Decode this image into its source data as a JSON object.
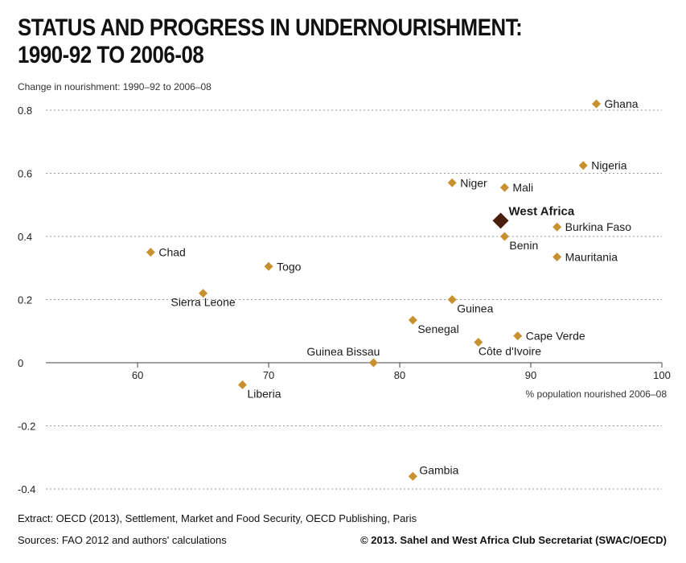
{
  "page": {
    "title_line1": "STATUS AND PROGRESS IN UNDERNOURISHMENT:",
    "title_line2": "1990-92 TO 2006-08",
    "extract": "Extract: OECD (2013), Settlement, Market and Food Security, OECD Publishing, Paris",
    "sources": "Sources: FAO 2012 and authors' calculations",
    "copyright": "© 2013. Sahel and West Africa Club Secretariat (SWAC/OECD)"
  },
  "chart_data": {
    "type": "scatter",
    "title": "STATUS AND PROGRESS IN UNDERNOURISHMENT: 1990-92 TO 2006-08",
    "xlabel": "% population nourished 2006–08",
    "ylabel": "Change in nourishment: 1990–92 to 2006–08",
    "xlim": [
      53,
      100
    ],
    "ylim": [
      -0.4,
      0.8
    ],
    "xticks": [
      60,
      70,
      80,
      90,
      100
    ],
    "yticks": [
      -0.4,
      -0.2,
      0,
      0.2,
      0.4,
      0.6,
      0.8
    ],
    "ytick_labels": [
      "-0.4",
      "-0.2",
      "0",
      "0.2",
      "0.4",
      "0.6",
      "0.8"
    ],
    "grid": "horizontal dotted",
    "colors": {
      "point": "#c8902e",
      "highlight": "#4a1e0c",
      "grid": "#9a9a9a"
    },
    "points": [
      {
        "label": "Ghana",
        "x": 95,
        "y": 0.82,
        "label_pos": "right"
      },
      {
        "label": "Nigeria",
        "x": 94,
        "y": 0.625,
        "label_pos": "right"
      },
      {
        "label": "Niger",
        "x": 84,
        "y": 0.57,
        "label_pos": "right"
      },
      {
        "label": "Mali",
        "x": 88,
        "y": 0.555,
        "label_pos": "right"
      },
      {
        "label": "West Africa",
        "x": 87.7,
        "y": 0.45,
        "label_pos": "above-right",
        "highlight": true
      },
      {
        "label": "Burkina Faso",
        "x": 92,
        "y": 0.43,
        "label_pos": "right"
      },
      {
        "label": "Benin",
        "x": 88,
        "y": 0.4,
        "label_pos": "below-right"
      },
      {
        "label": "Chad",
        "x": 61,
        "y": 0.35,
        "label_pos": "right"
      },
      {
        "label": "Mauritania",
        "x": 92,
        "y": 0.335,
        "label_pos": "right"
      },
      {
        "label": "Togo",
        "x": 70,
        "y": 0.305,
        "label_pos": "right"
      },
      {
        "label": "Sierra Leone",
        "x": 65,
        "y": 0.22,
        "label_pos": "below"
      },
      {
        "label": "Guinea",
        "x": 84,
        "y": 0.2,
        "label_pos": "below-right"
      },
      {
        "label": "Senegal",
        "x": 81,
        "y": 0.135,
        "label_pos": "below-right"
      },
      {
        "label": "Cape Verde",
        "x": 89,
        "y": 0.085,
        "label_pos": "right"
      },
      {
        "label": "Côte d'Ivoire",
        "x": 86,
        "y": 0.065,
        "label_pos": "below"
      },
      {
        "label": "Guinea Bissau",
        "x": 78,
        "y": 0.0,
        "label_pos": "above-left"
      },
      {
        "label": "Liberia",
        "x": 68,
        "y": -0.07,
        "label_pos": "below-right"
      },
      {
        "label": "Gambia",
        "x": 81,
        "y": -0.36,
        "label_pos": "above-right"
      }
    ]
  }
}
